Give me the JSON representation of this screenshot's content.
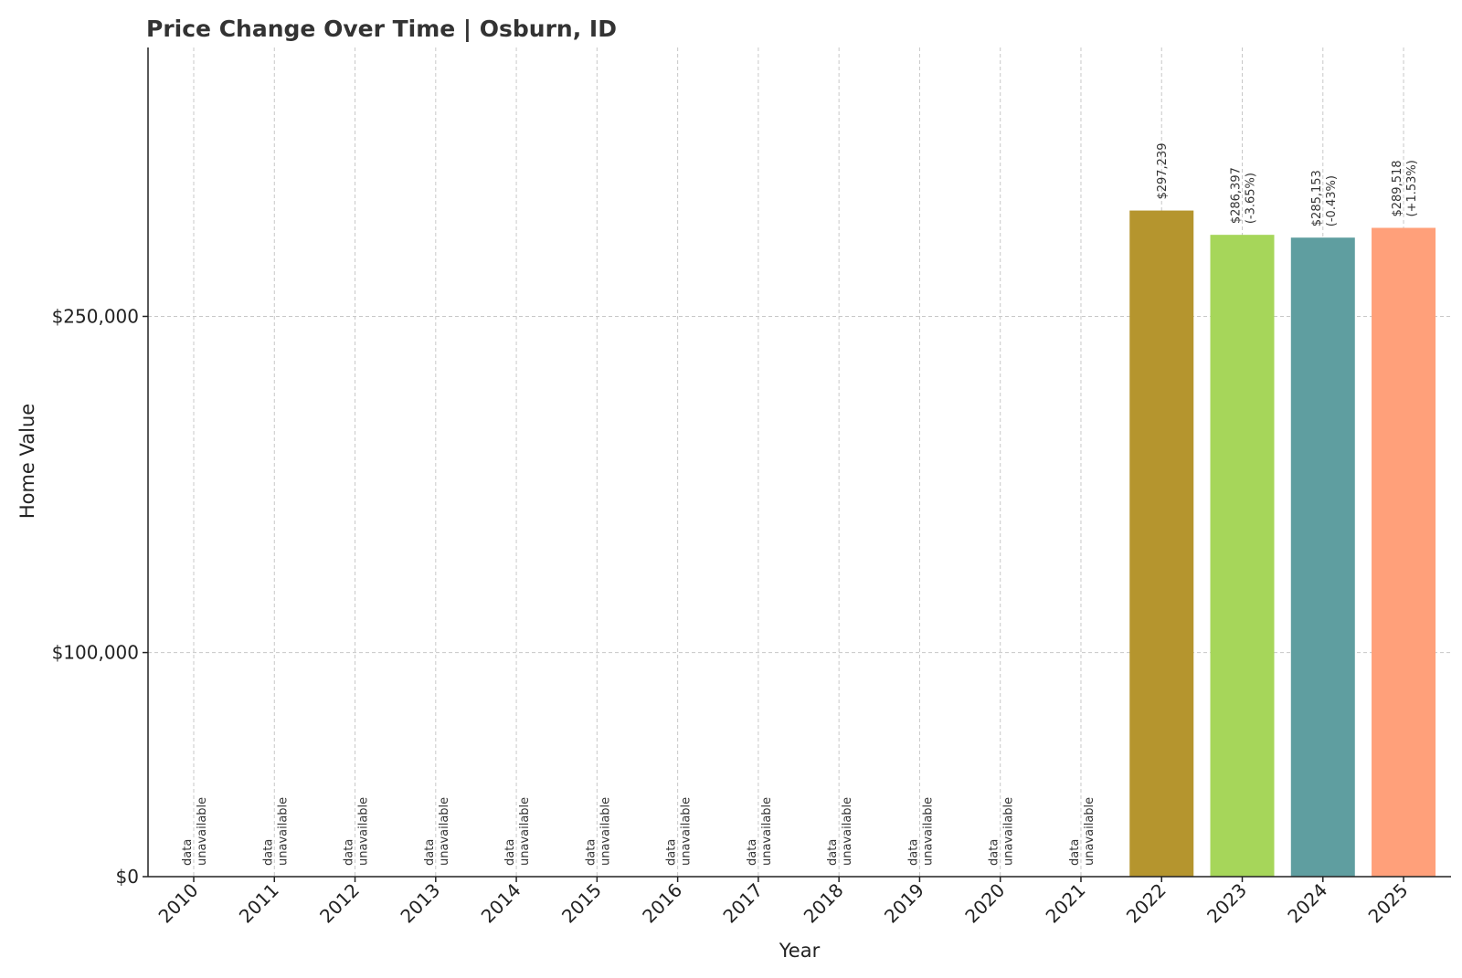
{
  "chart_data": {
    "type": "bar",
    "title": "Price Change Over Time | Osburn, ID",
    "xlabel": "Year",
    "ylabel": "Home Value",
    "ylim": [
      0,
      370000
    ],
    "y_ticks": [
      {
        "value": 0,
        "label": "$0"
      },
      {
        "value": 100000,
        "label": "$100,000"
      },
      {
        "value": 250000,
        "label": "$250,000"
      }
    ],
    "categories": [
      "2010",
      "2011",
      "2012",
      "2013",
      "2014",
      "2015",
      "2016",
      "2017",
      "2018",
      "2019",
      "2020",
      "2021",
      "2022",
      "2023",
      "2024",
      "2025"
    ],
    "values": [
      null,
      null,
      null,
      null,
      null,
      null,
      null,
      null,
      null,
      null,
      null,
      null,
      297239,
      286397,
      285153,
      289518
    ],
    "bar_labels": [
      [
        "data",
        "unavailable"
      ],
      [
        "data",
        "unavailable"
      ],
      [
        "data",
        "unavailable"
      ],
      [
        "data",
        "unavailable"
      ],
      [
        "data",
        "unavailable"
      ],
      [
        "data",
        "unavailable"
      ],
      [
        "data",
        "unavailable"
      ],
      [
        "data",
        "unavailable"
      ],
      [
        "data",
        "unavailable"
      ],
      [
        "data",
        "unavailable"
      ],
      [
        "data",
        "unavailable"
      ],
      [
        "data",
        "unavailable"
      ],
      [
        "$297,239"
      ],
      [
        "$286,397",
        "(-3.65%)"
      ],
      [
        "$285,153",
        "(-0.43%)"
      ],
      [
        "$289,518",
        "(+1.53%)"
      ]
    ],
    "bar_colors": [
      "#b5952e",
      "#a6d65a",
      "#5f9ea0",
      "#ffa07a"
    ],
    "grid": true,
    "legend": null
  }
}
